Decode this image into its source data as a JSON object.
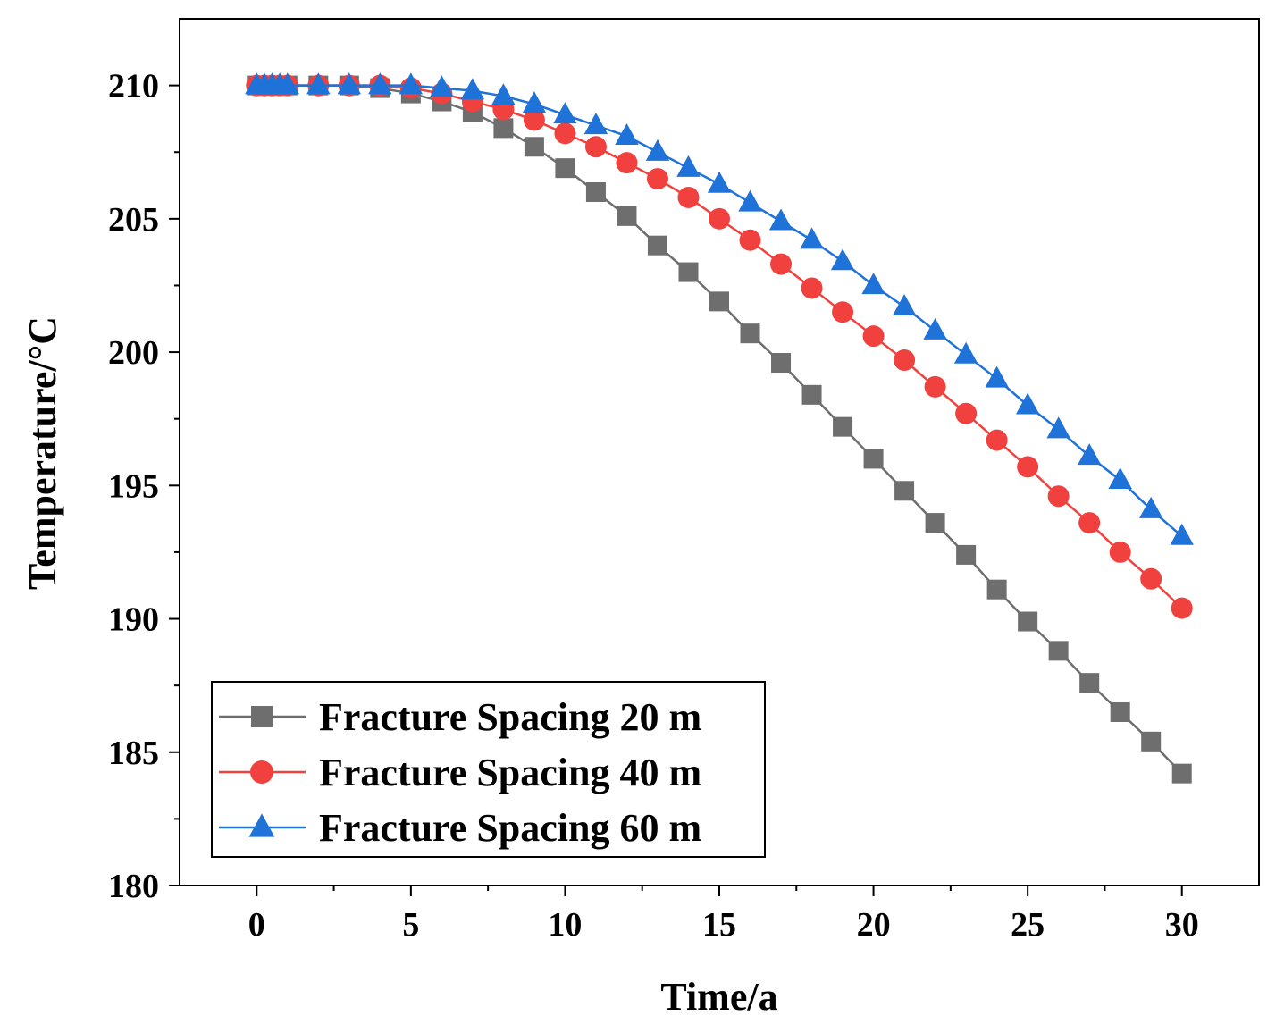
{
  "chart_data": {
    "type": "line",
    "title": "",
    "xlabel": "Time/a",
    "ylabel": "Temperature/°C",
    "xlim": [
      -2.5,
      32.5
    ],
    "ylim": [
      180,
      212.5
    ],
    "xticks": [
      "0",
      "5",
      "10",
      "15",
      "20",
      "25",
      "30"
    ],
    "yticks": [
      "180",
      "185",
      "190",
      "195",
      "200",
      "205",
      "210"
    ],
    "grid": false,
    "legend_position": "bottom-left",
    "series": [
      {
        "name": "Fracture Spacing 20 m",
        "color": "#6e6e6e",
        "marker": "square",
        "x": [
          0,
          0.25,
          0.5,
          0.75,
          1,
          2,
          3,
          4,
          5,
          6,
          7,
          8,
          9,
          10,
          11,
          12,
          13,
          14,
          15,
          16,
          17,
          18,
          19,
          20,
          21,
          22,
          23,
          24,
          25,
          26,
          27,
          28,
          29,
          30
        ],
        "values": [
          210,
          210,
          210,
          210,
          210,
          210,
          210,
          209.9,
          209.7,
          209.4,
          209.0,
          208.4,
          207.7,
          206.9,
          206.0,
          205.1,
          204.0,
          203.0,
          201.9,
          200.7,
          199.6,
          198.4,
          197.2,
          196.0,
          194.8,
          193.6,
          192.4,
          191.1,
          189.9,
          188.8,
          187.6,
          186.5,
          185.4,
          184.2
        ]
      },
      {
        "name": "Fracture Spacing 40 m",
        "color": "#f0413f",
        "marker": "circle",
        "x": [
          0,
          0.25,
          0.5,
          0.75,
          1,
          2,
          3,
          4,
          5,
          6,
          7,
          8,
          9,
          10,
          11,
          12,
          13,
          14,
          15,
          16,
          17,
          18,
          19,
          20,
          21,
          22,
          23,
          24,
          25,
          26,
          27,
          28,
          29,
          30
        ],
        "values": [
          210,
          210,
          210,
          210,
          210,
          210,
          210,
          210,
          209.9,
          209.7,
          209.4,
          209.1,
          208.7,
          208.2,
          207.7,
          207.1,
          206.5,
          205.8,
          205.0,
          204.2,
          203.3,
          202.4,
          201.5,
          200.6,
          199.7,
          198.7,
          197.7,
          196.7,
          195.7,
          194.6,
          193.6,
          192.5,
          191.5,
          190.4
        ]
      },
      {
        "name": "Fracture Spacing 60 m",
        "color": "#1f73d8",
        "marker": "triangle",
        "x": [
          0,
          0.25,
          0.5,
          0.75,
          1,
          2,
          3,
          4,
          5,
          6,
          7,
          8,
          9,
          10,
          11,
          12,
          13,
          14,
          15,
          16,
          17,
          18,
          19,
          20,
          21,
          22,
          23,
          24,
          25,
          26,
          27,
          28,
          29,
          30
        ],
        "values": [
          210,
          210,
          210,
          210,
          210,
          210,
          210,
          210,
          210,
          209.9,
          209.8,
          209.6,
          209.3,
          208.9,
          208.5,
          208.1,
          207.5,
          206.9,
          206.3,
          205.6,
          204.9,
          204.2,
          203.4,
          202.5,
          201.7,
          200.8,
          199.9,
          199.0,
          198.0,
          197.1,
          196.1,
          195.2,
          194.1,
          193.1
        ]
      }
    ]
  }
}
